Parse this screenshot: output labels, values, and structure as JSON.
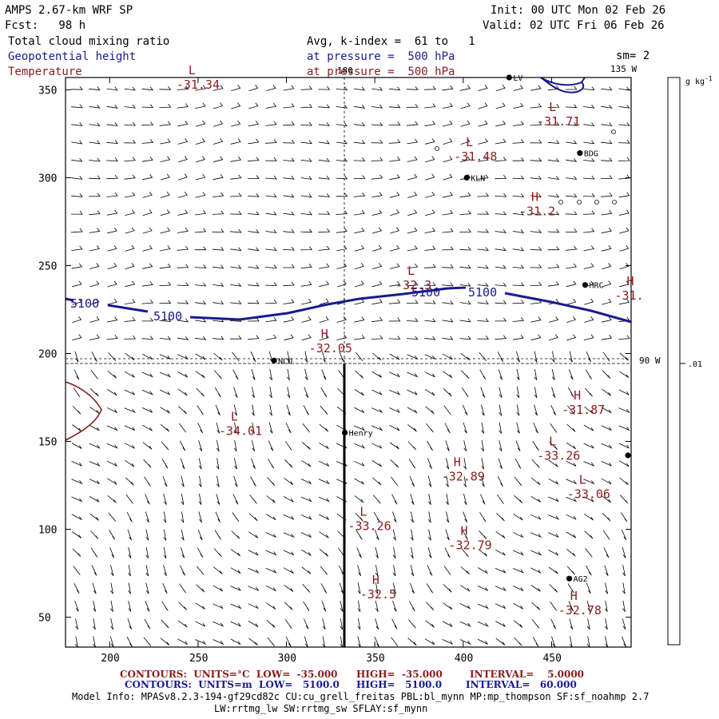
{
  "header": {
    "model": "AMPS 2.67-km WRF SP",
    "fcst": "Fcst:   98 h",
    "init": "Init: 00 UTC Mon 02 Feb 26",
    "valid": "Valid: 02 UTC Fri 06 Feb 26",
    "field1": "Total cloud mixing ratio",
    "field2": "Geopotential height",
    "field3": "Temperature",
    "avg": "Avg, k-index =  61 to   1",
    "press1": "at pressure =  500 hPa",
    "press2": "at pressure =  500 hPa",
    "sm": "sm= 2"
  },
  "map_labels": {
    "lon_180": "180",
    "lon_135w": "135 W",
    "lon_90w": "90 W",
    "colorbar_unit": "g kg",
    "colorbar_unit_exp": "-1",
    "colorbar_value": ".01",
    "contour_5100": "5100"
  },
  "axes": {
    "x_ticks": [
      200,
      250,
      300,
      350,
      400,
      450
    ],
    "y_ticks": [
      50,
      100,
      150,
      200,
      250,
      300,
      350
    ],
    "x_range": [
      175,
      495
    ],
    "y_range": [
      33,
      357
    ]
  },
  "stations": [
    {
      "name": "LV",
      "x": 426,
      "y": 357
    },
    {
      "name": "BDG",
      "x": 466,
      "y": 314
    },
    {
      "name": "KLN",
      "x": 402,
      "y": 300
    },
    {
      "name": "HRC",
      "x": 469,
      "y": 239
    },
    {
      "name": "NCO",
      "x": 293,
      "y": 196
    },
    {
      "name": "Henry",
      "x": 333,
      "y": 155
    },
    {
      "name": "AG2",
      "x": 460,
      "y": 72
    }
  ],
  "extrema": [
    {
      "type": "L",
      "value": "-31.34",
      "x": 240,
      "y": 357
    },
    {
      "type": "L",
      "value": "-31.71",
      "x": 444,
      "y": 336
    },
    {
      "type": "L",
      "value": "-31.48",
      "x": 397,
      "y": 316
    },
    {
      "type": "H",
      "value": "-31.2",
      "x": 434,
      "y": 285
    },
    {
      "type": "L",
      "value": "-32.3",
      "x": 364,
      "y": 243
    },
    {
      "type": "H",
      "value": "-31.",
      "x": 488,
      "y": 237
    },
    {
      "type": "H",
      "value": "-32.05",
      "x": 315,
      "y": 207
    },
    {
      "type": "H",
      "value": "-31.87",
      "x": 458,
      "y": 172
    },
    {
      "type": "L",
      "value": "-34.01",
      "x": 264,
      "y": 160
    },
    {
      "type": "L",
      "value": "-33.26",
      "x": 444,
      "y": 146
    },
    {
      "type": "H",
      "value": "-32.89",
      "x": 390,
      "y": 134
    },
    {
      "type": "L",
      "value": "-33.06",
      "x": 461,
      "y": 124
    },
    {
      "type": "L",
      "value": "-33.26",
      "x": 337,
      "y": 106
    },
    {
      "type": "H",
      "value": "-32.79",
      "x": 394,
      "y": 95
    },
    {
      "type": "H",
      "value": "-32.5",
      "x": 344,
      "y": 67
    },
    {
      "type": "H",
      "value": "-32.78",
      "x": 456,
      "y": 58
    }
  ],
  "footer": {
    "c1_label": "CONTOURS:  UNITS=°C  LOW=  -35.000",
    "c1_high": "HIGH=  -35.000",
    "c1_int": "INTERVAL=    5.0000",
    "c2_label": "CONTOURS:  UNITS=m  LOW=   5100.0",
    "c2_high": "HIGH=   5100.0",
    "c2_int": "INTERVAL=   60.000",
    "model_info": "Model Info: MPASv8.2.3-194-gf29cd82c CU:cu_grell_freitas PBL:bl_mynn MP:mp_thompson SF:sf_noahmp 2.7",
    "model_info2": "LW:rrtmg_lw SW:rrtmg_sw SFLAY:sf_mynn"
  },
  "colors": {
    "height": "#1a1a8c",
    "temperature": "#8b1a1a"
  }
}
